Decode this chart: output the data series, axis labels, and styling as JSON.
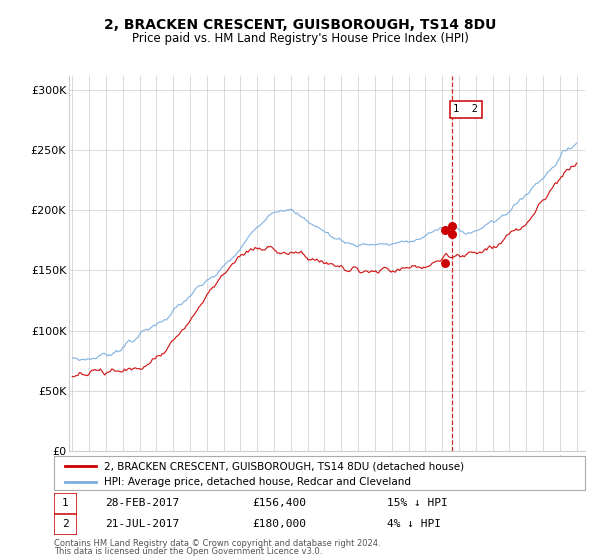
{
  "title": "2, BRACKEN CRESCENT, GUISBOROUGH, TS14 8DU",
  "subtitle": "Price paid vs. HM Land Registry's House Price Index (HPI)",
  "red_label": "2, BRACKEN CRESCENT, GUISBOROUGH, TS14 8DU (detached house)",
  "blue_label": "HPI: Average price, detached house, Redcar and Cleveland",
  "annotation1_date": "28-FEB-2017",
  "annotation1_price": "£156,400",
  "annotation1_hpi": "15% ↓ HPI",
  "annotation2_date": "21-JUL-2017",
  "annotation2_price": "£180,000",
  "annotation2_hpi": "4% ↓ HPI",
  "footer_line1": "Contains HM Land Registry data © Crown copyright and database right 2024.",
  "footer_line2": "This data is licensed under the Open Government Licence v3.0.",
  "vline_x": 2017.58,
  "dot1_x": 2017.16,
  "dot1_red_y": 156400,
  "dot1_blue_y": 184000,
  "dot2_x": 2017.58,
  "dot2_red_y": 180000,
  "dot2_blue_y": 187000,
  "red_color": "#cc0000",
  "blue_color": "#7aade0",
  "vline_color": "#cc0000",
  "grid_color": "#cccccc",
  "ylim": [
    0,
    312000
  ],
  "xlim_start": 1994.8,
  "xlim_end": 2025.5,
  "yticks": [
    0,
    50000,
    100000,
    150000,
    200000,
    250000,
    300000
  ],
  "ytick_labels": [
    "£0",
    "£50K",
    "£100K",
    "£150K",
    "£200K",
    "£250K",
    "£300K"
  ],
  "xticks": [
    1995,
    1996,
    1997,
    1998,
    1999,
    2000,
    2001,
    2002,
    2003,
    2004,
    2005,
    2006,
    2007,
    2008,
    2009,
    2010,
    2011,
    2012,
    2013,
    2014,
    2015,
    2016,
    2017,
    2018,
    2019,
    2020,
    2021,
    2022,
    2023,
    2024,
    2025
  ]
}
